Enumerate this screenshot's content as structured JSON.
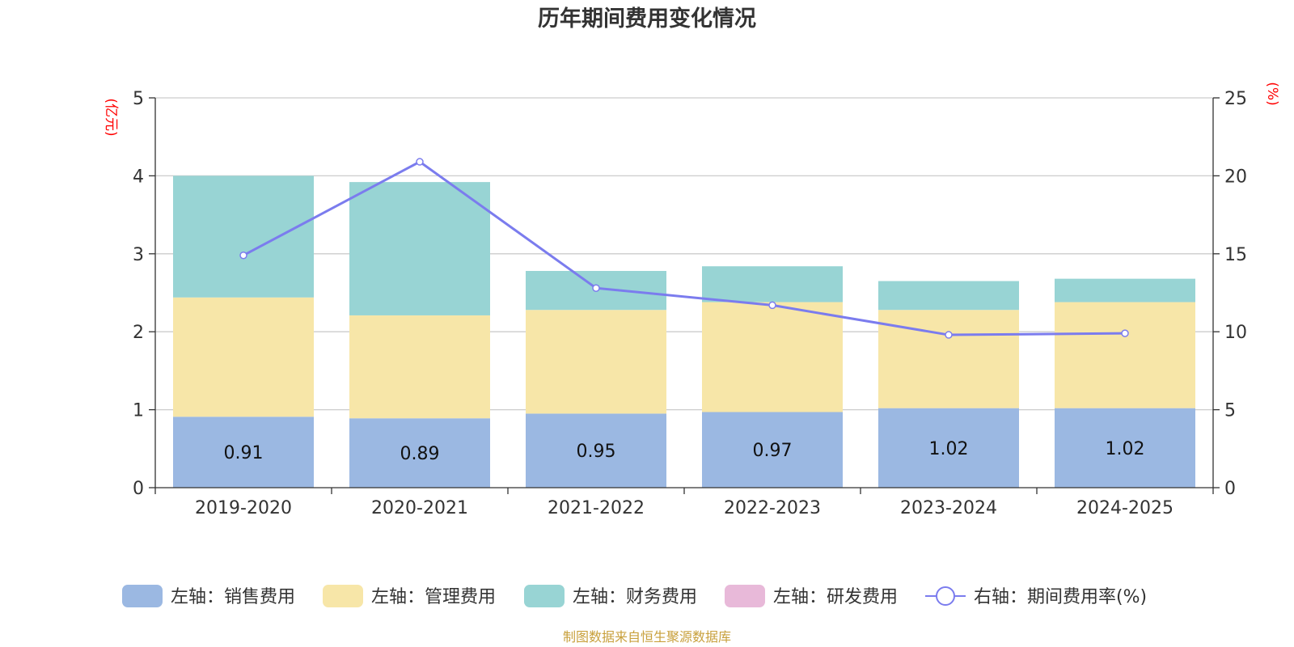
{
  "chart_data": {
    "type": "bar",
    "stacked": true,
    "title": "历年期间费用变化情况",
    "left_unit": "(亿元)",
    "right_unit": "(%)",
    "categories": [
      "2019-2020",
      "2020-2021",
      "2021-2022",
      "2022-2023",
      "2023-2024",
      "2024-2025"
    ],
    "left_axis": {
      "min": 0,
      "max": 5,
      "ticks": [
        "0",
        "1",
        "2",
        "3",
        "4",
        "5"
      ]
    },
    "right_axis": {
      "min": 0,
      "max": 25,
      "ticks": [
        "0",
        "5",
        "10",
        "15",
        "20",
        "25"
      ]
    },
    "grid": true,
    "legend_position": "bottom",
    "series": [
      {
        "name": "左轴：销售费用",
        "axis": "left",
        "type": "bar",
        "color": "#9bb8e2",
        "values": [
          0.91,
          0.89,
          0.95,
          0.97,
          1.02,
          1.02
        ],
        "labels": [
          "0.91",
          "0.89",
          "0.95",
          "0.97",
          "1.02",
          "1.02"
        ]
      },
      {
        "name": "左轴：管理费用",
        "axis": "left",
        "type": "bar",
        "color": "#f7e6a8",
        "values": [
          1.53,
          1.32,
          1.33,
          1.41,
          1.26,
          1.36
        ]
      },
      {
        "name": "左轴：财务费用",
        "axis": "left",
        "type": "bar",
        "color": "#98d4d4",
        "values": [
          1.56,
          1.71,
          0.5,
          0.46,
          0.37,
          0.3
        ]
      },
      {
        "name": "左轴：研发费用",
        "axis": "left",
        "type": "bar",
        "color": "#e8b9d9",
        "values": [
          0,
          0,
          0,
          0,
          0,
          0
        ]
      },
      {
        "name": "右轴：期间费用率(%)",
        "axis": "right",
        "type": "line",
        "color": "#7b7cee",
        "values": [
          14.9,
          20.9,
          12.8,
          11.7,
          9.8,
          9.9
        ]
      }
    ]
  },
  "source_note": "制图数据来自恒生聚源数据库"
}
